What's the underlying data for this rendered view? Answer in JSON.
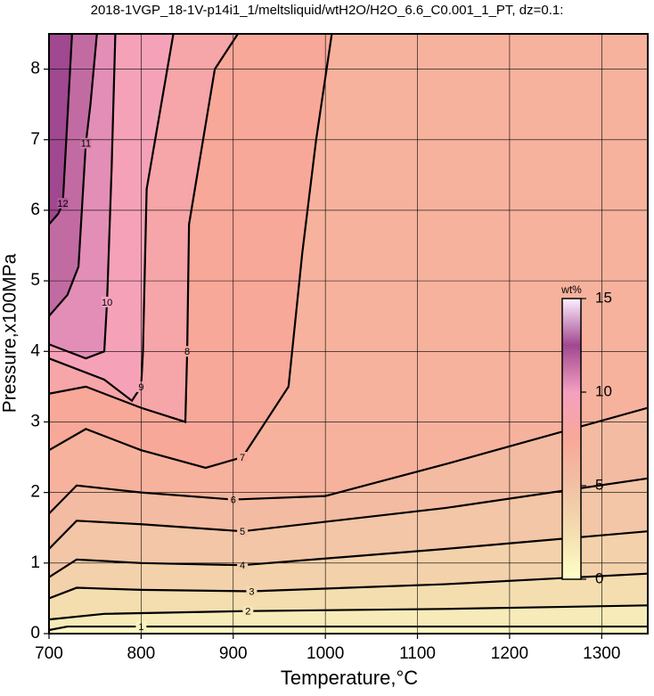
{
  "chart_data": {
    "type": "contour",
    "title": "2018-1VGP_18-1V-p14i1_1/meltsliquid/wtH2O/H2O_6.6_C0.001_1_PT, dz=0.1:",
    "x_label": "Temperature,°C",
    "y_label": "Pressure,x100MPa",
    "xlim": [
      700,
      1350
    ],
    "ylim": [
      0,
      8.5
    ],
    "xticks": [
      700,
      800,
      900,
      1000,
      1100,
      1200,
      1300
    ],
    "yticks": [
      0,
      1,
      2,
      3,
      4,
      5,
      6,
      7,
      8
    ],
    "grid": true,
    "contours": [
      {
        "level": 1,
        "x": [
          700,
          720,
          800,
          1000,
          1350
        ],
        "y": [
          0.05,
          0.1,
          0.1,
          0.1,
          0.1
        ]
      },
      {
        "level": 2,
        "x": [
          700,
          760,
          916,
          1130,
          1350
        ],
        "y": [
          0.2,
          0.28,
          0.32,
          0.35,
          0.4
        ]
      },
      {
        "level": 3,
        "x": [
          700,
          730,
          800,
          920,
          1130,
          1350
        ],
        "y": [
          0.5,
          0.65,
          0.62,
          0.6,
          0.7,
          0.85
        ]
      },
      {
        "level": 4,
        "x": [
          700,
          730,
          800,
          910,
          1130,
          1350
        ],
        "y": [
          0.8,
          1.05,
          1.0,
          0.97,
          1.2,
          1.45
        ]
      },
      {
        "level": 5,
        "x": [
          700,
          730,
          800,
          910,
          1130,
          1350
        ],
        "y": [
          1.2,
          1.6,
          1.55,
          1.45,
          1.78,
          2.2
        ]
      },
      {
        "level": 6,
        "x": [
          700,
          730,
          800,
          900,
          1000,
          1130,
          1350
        ],
        "y": [
          1.7,
          2.1,
          2.0,
          1.9,
          1.95,
          2.4,
          3.2
        ]
      },
      {
        "level": 7,
        "x": [
          700,
          740,
          800,
          870,
          910,
          960,
          975,
          990,
          1007
        ],
        "y": [
          2.6,
          2.9,
          2.6,
          2.35,
          2.5,
          3.5,
          5.4,
          7.0,
          8.5
        ]
      },
      {
        "level": 8,
        "x": [
          700,
          740,
          800,
          848,
          850,
          852,
          880,
          905
        ],
        "y": [
          3.4,
          3.5,
          3.2,
          3.0,
          4.0,
          5.8,
          8.0,
          8.5
        ]
      },
      {
        "level": 9,
        "x": [
          700,
          760,
          790,
          800,
          802,
          806,
          835
        ],
        "y": [
          3.9,
          3.6,
          3.3,
          3.5,
          4.0,
          6.3,
          8.5
        ]
      },
      {
        "level": 10,
        "x": [
          700,
          740,
          760,
          763,
          768,
          772
        ],
        "y": [
          4.1,
          3.9,
          4.0,
          4.7,
          6.6,
          8.5
        ]
      },
      {
        "level": 11,
        "x": [
          700,
          720,
          732,
          740,
          745,
          752
        ],
        "y": [
          4.5,
          4.8,
          5.2,
          6.95,
          7.5,
          8.5
        ]
      },
      {
        "level": 12,
        "x": [
          700,
          710,
          715,
          725
        ],
        "y": [
          5.8,
          5.95,
          6.1,
          8.5
        ]
      }
    ],
    "colorbar": {
      "label": "wt%",
      "lim": [
        0,
        15
      ],
      "ticks": [
        0,
        5,
        10,
        15
      ],
      "colors": [
        "#ffffc8",
        "#f4deb0",
        "#f2c0a4",
        "#f8a898",
        "#f4a0c0",
        "#a04890",
        "#fff0ff"
      ]
    }
  }
}
